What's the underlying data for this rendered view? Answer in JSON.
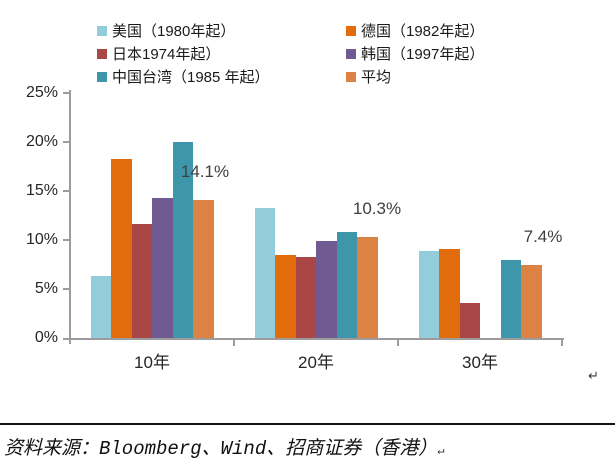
{
  "chart_data": {
    "type": "bar",
    "title": "",
    "categories": [
      "10年",
      "20年",
      "30年"
    ],
    "category_keys": [
      "10y",
      "20y",
      "30y"
    ],
    "series": [
      {
        "key": "us",
        "name": "美国（1980年起）",
        "color": "#93CDDB",
        "values": [
          6.3,
          13.3,
          8.9
        ]
      },
      {
        "key": "germany",
        "name": "德国（1982年起）",
        "color": "#E26C0B",
        "values": [
          18.3,
          8.5,
          9.1
        ]
      },
      {
        "key": "japan",
        "name": "日本1974年起）",
        "color": "#A94747",
        "values": [
          11.6,
          8.3,
          3.6
        ]
      },
      {
        "key": "korea",
        "name": "韩国（1997年起）",
        "color": "#6F5A92",
        "values": [
          14.3,
          9.9,
          null
        ]
      },
      {
        "key": "taiwan",
        "name": "中国台湾（1985 年起）",
        "color": "#3E96AB",
        "values": [
          20.0,
          10.8,
          8.0
        ]
      },
      {
        "key": "average",
        "name": "平均",
        "color": "#DB8244",
        "values": [
          14.1,
          10.3,
          7.4
        ]
      }
    ],
    "data_labels": [
      "14.1%",
      "10.3%",
      "7.4%"
    ],
    "y_ticks": [
      "25%",
      "20%",
      "15%",
      "10%",
      "5%",
      "0%"
    ],
    "ylim": [
      0,
      25
    ],
    "xlabel": "",
    "ylabel": "",
    "grid": false,
    "legend_position": "top"
  },
  "footer": {
    "source_text": "资料来源：Bloomberg、Wind、招商证券（香港）",
    "return_mark": "↵"
  }
}
